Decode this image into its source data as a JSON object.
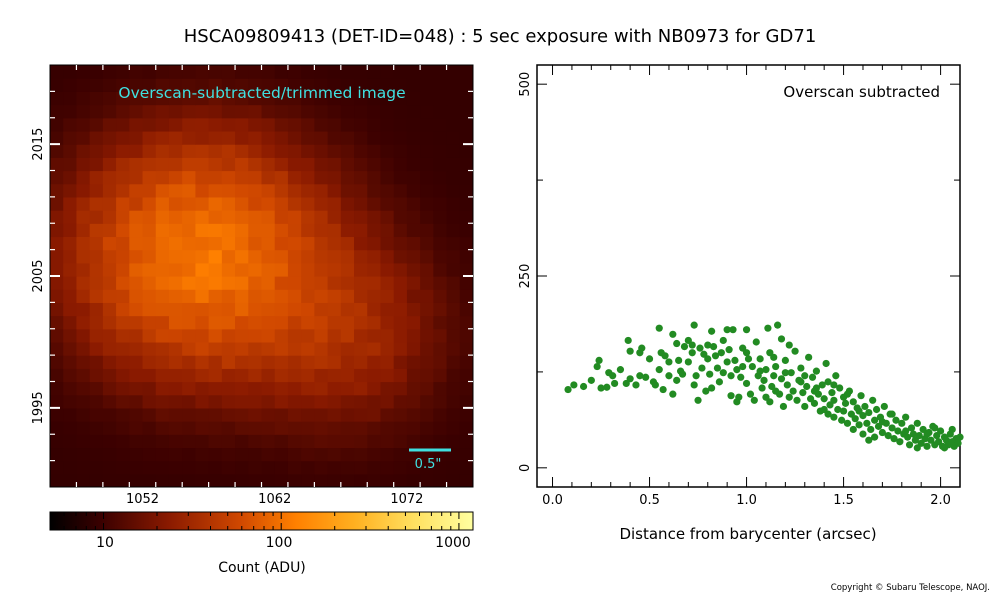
{
  "figure": {
    "title": "HSCA09809413 (DET-ID=048) :  5 sec exposure with NB0973 for GD71",
    "copyright": "Copyright © Subaru Telescope, NAOJ."
  },
  "colors": {
    "scatter_points": "#228b22",
    "image_label": "#40e0e0",
    "scale_bar": "#40e0e0",
    "tick_white": "#ffffff"
  },
  "chart_data": [
    {
      "type": "heatmap",
      "title": "Overscan-subtracted/trimmed image",
      "xlabel": "",
      "ylabel": "",
      "x_ticks": [
        1052,
        1062,
        1072
      ],
      "y_ticks": [
        1995,
        2005,
        2015
      ],
      "xlim": [
        1045,
        1077
      ],
      "ylim": [
        1989,
        2021
      ],
      "grid": false,
      "star_peak_position": {
        "x": 1056.5,
        "y": 2006.5
      },
      "scale_bar_label": "0.5\"",
      "colormap": "afmhot",
      "colorbar": {
        "label": "Count (ADU)",
        "scale": "log",
        "range": [
          5,
          1200
        ],
        "tick_labels": [
          "10",
          "100",
          "1000"
        ]
      }
    },
    {
      "type": "scatter",
      "annotation": "Overscan subtracted",
      "xlabel": "Distance from barycenter (arcsec)",
      "ylabel": "",
      "xlim": [
        -0.08,
        2.1
      ],
      "ylim": [
        -25,
        525
      ],
      "x_ticks": [
        0.0,
        0.5,
        1.0,
        1.5,
        2.0
      ],
      "x_tick_labels": [
        "0.0",
        "0.5",
        "1.0",
        "1.5",
        "2.0"
      ],
      "y_ticks": [
        0,
        250,
        500
      ],
      "y_tick_labels": [
        "0",
        "250",
        "500"
      ],
      "grid": false,
      "series": [
        {
          "points": [
            [
              0.08,
              102
            ],
            [
              0.11,
              108
            ],
            [
              0.16,
              106
            ],
            [
              0.2,
              114
            ],
            [
              0.23,
              132
            ],
            [
              0.24,
              140
            ],
            [
              0.25,
              104
            ],
            [
              0.28,
              105
            ],
            [
              0.29,
              124
            ],
            [
              0.31,
              120
            ],
            [
              0.32,
              110
            ],
            [
              0.35,
              128
            ],
            [
              0.38,
              110
            ],
            [
              0.39,
              166
            ],
            [
              0.4,
              116
            ],
            [
              0.4,
              152
            ],
            [
              0.43,
              108
            ],
            [
              0.45,
              150
            ],
            [
              0.45,
              120
            ],
            [
              0.46,
              156
            ],
            [
              0.48,
              118
            ],
            [
              0.5,
              142
            ],
            [
              0.52,
              112
            ],
            [
              0.53,
              108
            ],
            [
              0.55,
              128
            ],
            [
              0.55,
              182
            ],
            [
              0.56,
              150
            ],
            [
              0.57,
              102
            ],
            [
              0.58,
              146
            ],
            [
              0.6,
              138
            ],
            [
              0.6,
              120
            ],
            [
              0.62,
              174
            ],
            [
              0.62,
              96
            ],
            [
              0.64,
              114
            ],
            [
              0.64,
              162
            ],
            [
              0.65,
              140
            ],
            [
              0.66,
              126
            ],
            [
              0.67,
              122
            ],
            [
              0.68,
              158
            ],
            [
              0.7,
              166
            ],
            [
              0.7,
              138
            ],
            [
              0.72,
              160
            ],
            [
              0.72,
              150
            ],
            [
              0.73,
              186
            ],
            [
              0.73,
              108
            ],
            [
              0.74,
              120
            ],
            [
              0.75,
              88
            ],
            [
              0.76,
              156
            ],
            [
              0.77,
              130
            ],
            [
              0.78,
              148
            ],
            [
              0.79,
              100
            ],
            [
              0.8,
              160
            ],
            [
              0.8,
              142
            ],
            [
              0.81,
              122
            ],
            [
              0.82,
              178
            ],
            [
              0.82,
              104
            ],
            [
              0.83,
              158
            ],
            [
              0.84,
              146
            ],
            [
              0.85,
              130
            ],
            [
              0.86,
              112
            ],
            [
              0.87,
              150
            ],
            [
              0.88,
              124
            ],
            [
              0.9,
              180
            ],
            [
              0.9,
              138
            ],
            [
              0.91,
              154
            ],
            [
              0.92,
              120
            ],
            [
              0.92,
              94
            ],
            [
              0.93,
              180
            ],
            [
              0.94,
              140
            ],
            [
              0.95,
              128
            ],
            [
              0.95,
              86
            ],
            [
              0.96,
              92
            ],
            [
              0.97,
              118
            ],
            [
              0.98,
              132
            ],
            [
              1.0,
              180
            ],
            [
              1.0,
              110
            ],
            [
              1.0,
              150
            ],
            [
              1.01,
              142
            ],
            [
              1.02,
              96
            ],
            [
              1.03,
              132
            ],
            [
              1.04,
              88
            ],
            [
              1.05,
              164
            ],
            [
              1.06,
              120
            ],
            [
              1.07,
              142
            ],
            [
              1.08,
              104
            ],
            [
              1.09,
              114
            ],
            [
              1.1,
              92
            ],
            [
              1.1,
              128
            ],
            [
              1.11,
              182
            ],
            [
              1.12,
              86
            ],
            [
              1.12,
              150
            ],
            [
              1.13,
              106
            ],
            [
              1.14,
              120
            ],
            [
              1.15,
              100
            ],
            [
              1.15,
              132
            ],
            [
              1.16,
              186
            ],
            [
              1.17,
              96
            ],
            [
              1.18,
              168
            ],
            [
              1.18,
              116
            ],
            [
              1.19,
              80
            ],
            [
              1.2,
              140
            ],
            [
              1.21,
              108
            ],
            [
              1.22,
              160
            ],
            [
              1.22,
              92
            ],
            [
              1.23,
              124
            ],
            [
              1.24,
              100
            ],
            [
              1.25,
              152
            ],
            [
              1.26,
              88
            ],
            [
              1.27,
              114
            ],
            [
              1.28,
              130
            ],
            [
              1.29,
              98
            ],
            [
              1.3,
              80
            ],
            [
              1.3,
              120
            ],
            [
              1.31,
              106
            ],
            [
              1.32,
              144
            ],
            [
              1.33,
              90
            ],
            [
              1.34,
              118
            ],
            [
              1.35,
              100
            ],
            [
              1.35,
              84
            ],
            [
              1.36,
              126
            ],
            [
              1.37,
              96
            ],
            [
              1.38,
              74
            ],
            [
              1.39,
              108
            ],
            [
              1.4,
              90
            ],
            [
              1.41,
              136
            ],
            [
              1.42,
              70
            ],
            [
              1.42,
              112
            ],
            [
              1.43,
              82
            ],
            [
              1.44,
              98
            ],
            [
              1.45,
              66
            ],
            [
              1.45,
              88
            ],
            [
              1.46,
              120
            ],
            [
              1.47,
              76
            ],
            [
              1.48,
              104
            ],
            [
              1.49,
              62
            ],
            [
              1.5,
              92
            ],
            [
              1.5,
              74
            ],
            [
              1.51,
              84
            ],
            [
              1.52,
              58
            ],
            [
              1.53,
              100
            ],
            [
              1.54,
              70
            ],
            [
              1.55,
              50
            ],
            [
              1.55,
              86
            ],
            [
              1.56,
              64
            ],
            [
              1.57,
              78
            ],
            [
              1.58,
              56
            ],
            [
              1.59,
              94
            ],
            [
              1.6,
              68
            ],
            [
              1.6,
              44
            ],
            [
              1.61,
              80
            ],
            [
              1.62,
              58
            ],
            [
              1.63,
              72
            ],
            [
              1.64,
              50
            ],
            [
              1.65,
              88
            ],
            [
              1.66,
              62
            ],
            [
              1.66,
              40
            ],
            [
              1.67,
              76
            ],
            [
              1.68,
              54
            ],
            [
              1.69,
              66
            ],
            [
              1.7,
              46
            ],
            [
              1.71,
              80
            ],
            [
              1.72,
              58
            ],
            [
              1.73,
              42
            ],
            [
              1.74,
              70
            ],
            [
              1.75,
              52
            ],
            [
              1.76,
              38
            ],
            [
              1.77,
              62
            ],
            [
              1.78,
              48
            ],
            [
              1.79,
              34
            ],
            [
              1.8,
              58
            ],
            [
              1.81,
              44
            ],
            [
              1.82,
              66
            ],
            [
              1.83,
              40
            ],
            [
              1.84,
              30
            ],
            [
              1.85,
              52
            ],
            [
              1.86,
              44
            ],
            [
              1.87,
              36
            ],
            [
              1.88,
              58
            ],
            [
              1.89,
              42
            ],
            [
              1.9,
              32
            ],
            [
              1.91,
              50
            ],
            [
              1.92,
              38
            ],
            [
              1.93,
              28
            ],
            [
              1.94,
              46
            ],
            [
              1.95,
              36
            ],
            [
              1.96,
              54
            ],
            [
              1.97,
              30
            ],
            [
              1.98,
              42
            ],
            [
              1.99,
              34
            ],
            [
              2.0,
              48
            ],
            [
              2.01,
              28
            ],
            [
              2.02,
              40
            ],
            [
              2.03,
              36
            ],
            [
              2.04,
              30
            ],
            [
              2.05,
              44
            ],
            [
              2.06,
              34
            ],
            [
              2.07,
              28
            ],
            [
              2.08,
              38
            ],
            [
              2.09,
              32
            ],
            [
              2.1,
              40
            ],
            [
              1.58,
              74
            ],
            [
              1.63,
              36
            ],
            [
              1.7,
              60
            ],
            [
              1.75,
              70
            ],
            [
              1.82,
              48
            ],
            [
              1.88,
              26
            ],
            [
              1.93,
              44
            ],
            [
              1.97,
              52
            ],
            [
              2.02,
              26
            ],
            [
              2.06,
              50
            ],
            [
              1.45,
              108
            ],
            [
              1.4,
              76
            ],
            [
              1.36,
              104
            ],
            [
              1.52,
              96
            ],
            [
              1.28,
              112
            ],
            [
              1.2,
              124
            ],
            [
              1.14,
              144
            ],
            [
              1.07,
              126
            ],
            [
              0.98,
              156
            ],
            [
              0.88,
              166
            ]
          ]
        }
      ]
    }
  ]
}
